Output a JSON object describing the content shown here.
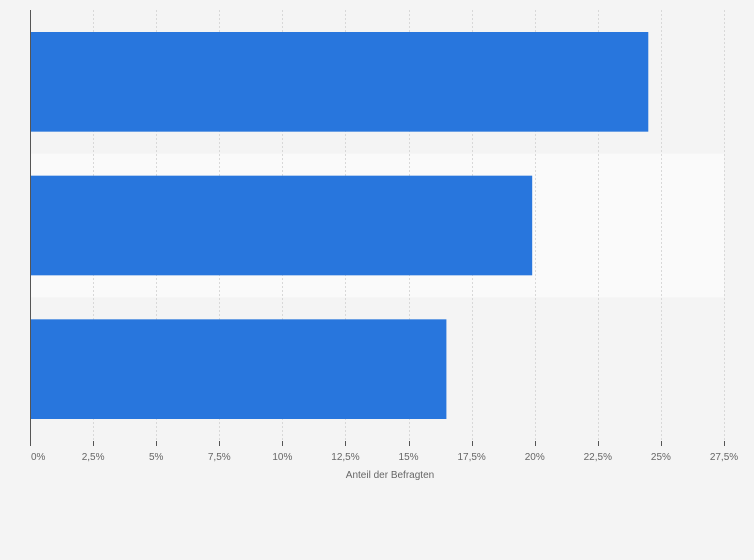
{
  "chart_data": {
    "type": "bar",
    "orientation": "horizontal",
    "categories": [
      "",
      "",
      ""
    ],
    "values": [
      24.5,
      19.9,
      16.5
    ],
    "bar_color": "#2876dd",
    "xlabel": "Anteil der Befragten",
    "ylabel": "",
    "xlim": [
      0,
      27.5
    ],
    "xticks": [
      0,
      2.5,
      5,
      7.5,
      10,
      12.5,
      15,
      17.5,
      20,
      22.5,
      25,
      27.5
    ],
    "xtick_labels": [
      "0%",
      "2,5%",
      "5%",
      "7,5%",
      "10%",
      "12,5%",
      "15%",
      "17,5%",
      "20%",
      "22,5%",
      "25%",
      "27,5%"
    ],
    "grid": true,
    "colors": {
      "background": "#f4f4f4",
      "band_alternate": "#fafafa",
      "gridline": "#d8d8d8",
      "axis": "#555555",
      "text": "#666666"
    }
  }
}
